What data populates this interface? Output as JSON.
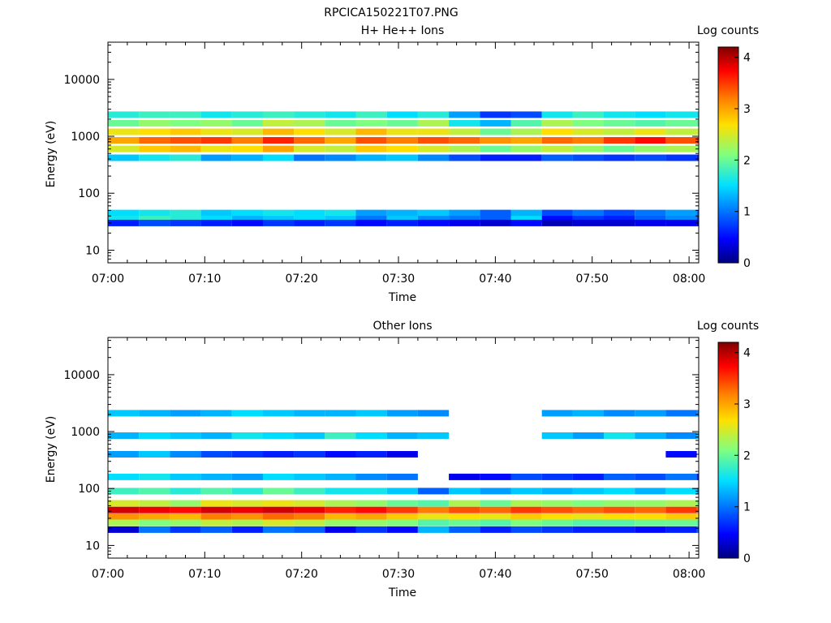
{
  "figure_title": "RPCICA150221T07.PNG",
  "chart_data": [
    {
      "type": "heatmap",
      "title": "H+ He++ Ions",
      "xlabel": "Time",
      "ylabel": "Energy (eV)",
      "x_ticks": [
        "07:00",
        "07:10",
        "07:20",
        "07:30",
        "07:40",
        "07:50",
        "08:00"
      ],
      "y_ticks": [
        "10",
        "100",
        "1000",
        "10000"
      ],
      "y_scale": "log",
      "ylim": [
        6,
        45000
      ],
      "colorbar_label": "Log counts",
      "colorbar_ticks": [
        "0",
        "1",
        "2",
        "3",
        "4"
      ],
      "colorbar_range": [
        0,
        4.2
      ],
      "x_bins_minutes": [
        0,
        3.2,
        6.4,
        9.6,
        12.8,
        16,
        19.2,
        22.4,
        25.6,
        28.8,
        32,
        35.2,
        38.4,
        41.6,
        44.8,
        48,
        51.2,
        54.4,
        57.6,
        60.8
      ],
      "bands": [
        {
          "energy": 2400,
          "levels": [
            1.7,
            1.8,
            1.8,
            1.6,
            1.7,
            1.8,
            1.7,
            1.6,
            1.8,
            1.5,
            1.7,
            1.2,
            0.7,
            0.8,
            1.6,
            1.8,
            1.6,
            1.5,
            1.6,
            1.5
          ]
        },
        {
          "energy": 1700,
          "levels": [
            2.0,
            2.2,
            2.1,
            2.2,
            2.0,
            2.4,
            2.3,
            2.0,
            2.1,
            2.0,
            2.3,
            1.6,
            1.3,
            1.9,
            2.3,
            2.1,
            2.0,
            1.9,
            2.0,
            1.9
          ]
        },
        {
          "energy": 1200,
          "levels": [
            2.6,
            2.7,
            2.8,
            2.6,
            2.5,
            2.9,
            2.7,
            2.5,
            2.9,
            2.6,
            2.6,
            2.4,
            2.0,
            2.3,
            2.7,
            2.5,
            2.4,
            2.6,
            2.4,
            2.5
          ]
        },
        {
          "energy": 850,
          "levels": [
            3.0,
            3.3,
            3.4,
            3.5,
            3.2,
            3.6,
            3.3,
            3.0,
            3.4,
            3.2,
            3.4,
            3.3,
            3.1,
            3.0,
            3.3,
            3.2,
            3.5,
            3.7,
            3.4,
            3.6
          ]
        },
        {
          "energy": 600,
          "levels": [
            2.5,
            2.8,
            2.9,
            2.6,
            2.7,
            3.0,
            2.5,
            2.4,
            2.8,
            2.7,
            2.5,
            2.3,
            2.0,
            2.2,
            2.4,
            2.2,
            2.0,
            2.2,
            2.3,
            2.1
          ]
        },
        {
          "energy": 420,
          "levels": [
            1.4,
            1.6,
            1.7,
            1.2,
            1.3,
            1.5,
            1.0,
            1.1,
            1.3,
            1.4,
            1.1,
            0.8,
            0.6,
            0.6,
            0.9,
            0.8,
            0.7,
            0.8,
            0.7,
            0.6
          ]
        },
        {
          "energy": 45,
          "levels": [
            1.5,
            1.6,
            1.7,
            1.4,
            1.5,
            1.6,
            1.5,
            1.6,
            1.2,
            1.3,
            1.4,
            1.2,
            0.9,
            1.3,
            0.8,
            1.0,
            0.8,
            1.0,
            1.2,
            0.9
          ]
        },
        {
          "energy": 35,
          "levels": [
            1.6,
            1.8,
            1.7,
            1.5,
            1.3,
            1.4,
            1.5,
            1.4,
            1.0,
            1.4,
            1.1,
            1.0,
            0.9,
            1.5,
            0.5,
            0.7,
            0.6,
            0.9,
            1.1,
            0.7
          ]
        },
        {
          "energy": 30,
          "levels": [
            0.6,
            0.8,
            0.7,
            0.6,
            0.5,
            0.7,
            0.6,
            0.7,
            0.5,
            0.6,
            0.5,
            0.4,
            0.3,
            0.5,
            0.2,
            0.3,
            0.3,
            0.4,
            0.4,
            0.3
          ]
        }
      ]
    },
    {
      "type": "heatmap",
      "title": "Other Ions",
      "xlabel": "Time",
      "ylabel": "Energy (eV)",
      "x_ticks": [
        "07:00",
        "07:10",
        "07:20",
        "07:30",
        "07:40",
        "07:50",
        "08:00"
      ],
      "y_ticks": [
        "10",
        "100",
        "1000",
        "10000"
      ],
      "y_scale": "log",
      "ylim": [
        6,
        45000
      ],
      "colorbar_label": "Log counts",
      "colorbar_ticks": [
        "0",
        "1",
        "2",
        "3",
        "4"
      ],
      "colorbar_range": [
        0,
        4.2
      ],
      "x_bins_minutes": [
        0,
        3.2,
        6.4,
        9.6,
        12.8,
        16,
        19.2,
        22.4,
        25.6,
        28.8,
        32,
        35.2,
        38.4,
        41.6,
        44.8,
        48,
        51.2,
        54.4,
        57.6,
        60.8
      ],
      "bands": [
        {
          "energy": 2100,
          "levels": [
            1.4,
            1.3,
            1.2,
            1.3,
            1.5,
            1.4,
            1.3,
            1.3,
            1.4,
            1.2,
            1.1,
            null,
            null,
            null,
            1.2,
            1.3,
            1.1,
            1.2,
            1.0,
            1.1
          ]
        },
        {
          "energy": 850,
          "levels": [
            1.3,
            1.5,
            1.4,
            1.3,
            1.6,
            1.5,
            1.4,
            1.8,
            1.5,
            1.3,
            1.4,
            null,
            null,
            null,
            1.4,
            1.2,
            1.6,
            1.3,
            1.1,
            1.4
          ]
        },
        {
          "energy": 400,
          "levels": [
            1.2,
            1.4,
            1.1,
            0.8,
            0.7,
            0.6,
            0.7,
            0.5,
            0.6,
            0.4,
            null,
            null,
            null,
            null,
            null,
            null,
            null,
            null,
            0.5,
            null
          ]
        },
        {
          "energy": 160,
          "levels": [
            1.5,
            1.6,
            1.4,
            1.3,
            1.2,
            1.5,
            1.4,
            1.3,
            1.1,
            1.0,
            null,
            0.4,
            0.5,
            0.8,
            0.7,
            0.6,
            0.9,
            0.8,
            1.0,
            0.6
          ]
        },
        {
          "energy": 90,
          "levels": [
            1.8,
            1.9,
            1.7,
            1.9,
            1.7,
            2.0,
            1.8,
            1.6,
            1.6,
            1.4,
            0.9,
            1.4,
            1.2,
            1.4,
            1.3,
            1.4,
            1.5,
            1.3,
            1.5,
            1.2
          ]
        },
        {
          "energy": 55,
          "levels": [
            2.5,
            2.4,
            2.2,
            2.6,
            2.5,
            2.6,
            2.5,
            2.3,
            2.2,
            2.0,
            1.9,
            2.3,
            2.0,
            2.3,
            2.2,
            2.1,
            2.2,
            2.2,
            2.3,
            2.0
          ]
        },
        {
          "energy": 42,
          "levels": [
            3.9,
            3.8,
            3.7,
            3.9,
            3.8,
            3.9,
            3.8,
            3.6,
            3.7,
            3.5,
            3.2,
            3.4,
            3.3,
            3.5,
            3.4,
            3.3,
            3.4,
            3.3,
            3.5,
            3.3
          ]
        },
        {
          "energy": 32,
          "levels": [
            3.1,
            3.0,
            2.9,
            3.2,
            3.1,
            3.3,
            3.2,
            2.9,
            3.0,
            2.8,
            2.6,
            2.7,
            2.6,
            2.8,
            2.7,
            2.6,
            2.7,
            2.7,
            2.8,
            2.6
          ]
        },
        {
          "energy": 25,
          "levels": [
            2.3,
            2.1,
            2.2,
            2.4,
            2.3,
            2.5,
            2.4,
            2.2,
            2.2,
            2.1,
            1.9,
            2.0,
            1.9,
            2.1,
            2.0,
            1.9,
            1.9,
            2.0,
            2.0,
            1.8
          ]
        },
        {
          "energy": 19,
          "levels": [
            0.3,
            1.0,
            0.7,
            0.9,
            0.6,
            1.0,
            0.9,
            0.4,
            0.7,
            0.5,
            1.3,
            0.9,
            0.6,
            0.8,
            0.7,
            0.6,
            0.6,
            0.5,
            0.6,
            0.9
          ]
        }
      ]
    }
  ]
}
